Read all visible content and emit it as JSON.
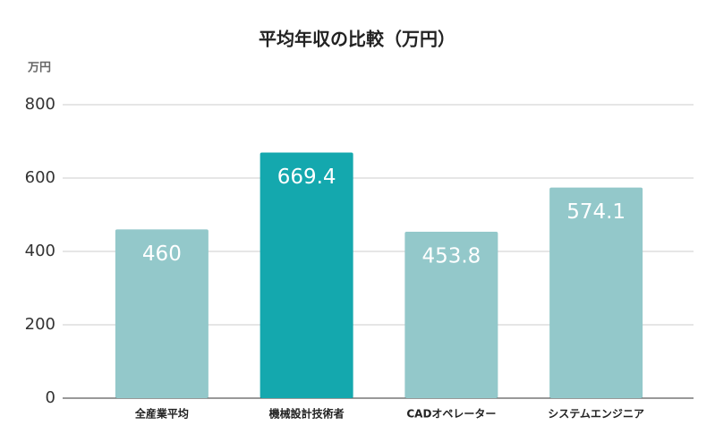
{
  "chart_data": {
    "type": "bar",
    "title": "平均年収の比較（万円）",
    "y_axis_label": "万円",
    "categories": [
      "全産業平均",
      "機械設計技術者",
      "CADオペレーター",
      "システムエンジニア"
    ],
    "values": [
      460,
      669.4,
      453.8,
      574.1
    ],
    "colors": [
      "#93c8ca",
      "#14a8ae",
      "#93c8ca",
      "#93c8ca"
    ],
    "ylim": [
      0,
      800
    ],
    "yticks": [
      0,
      200,
      400,
      600,
      800
    ],
    "grid": true
  }
}
